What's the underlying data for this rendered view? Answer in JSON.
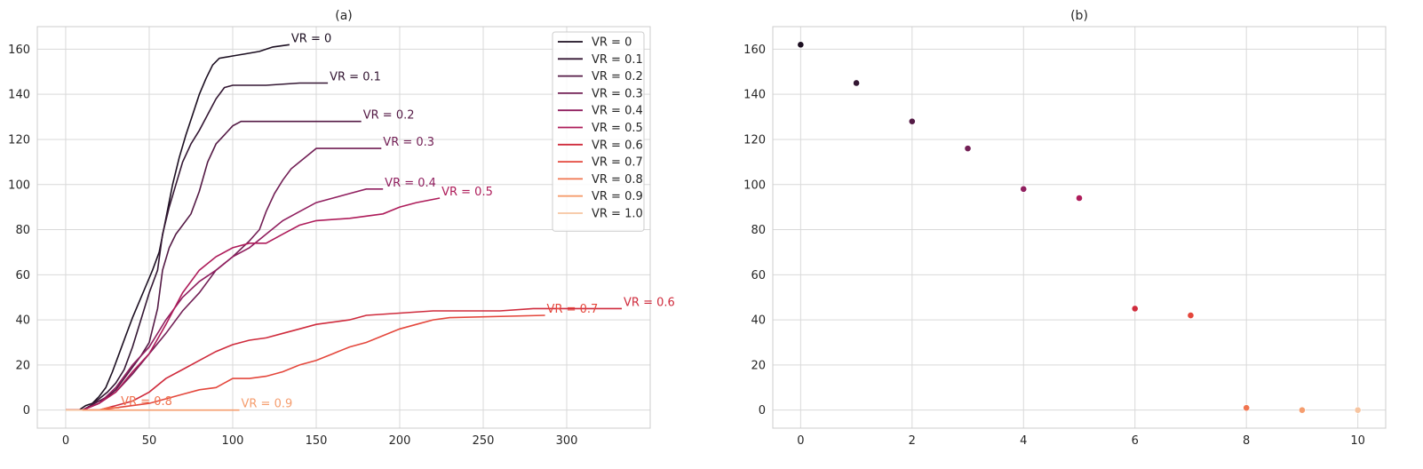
{
  "chart_data": [
    {
      "type": "line",
      "title": "(a)",
      "xlabel": "",
      "ylabel": "",
      "xlim": [
        -17,
        350
      ],
      "ylim": [
        -8,
        170
      ],
      "xticks": [
        0,
        50,
        100,
        150,
        200,
        250,
        300
      ],
      "yticks": [
        0,
        20,
        40,
        60,
        80,
        100,
        120,
        140,
        160
      ],
      "grid": true,
      "legend_position": "top-right",
      "series": [
        {
          "name": "VR = 0",
          "color": "#1c0f21",
          "label": "VR = 0",
          "points": [
            [
              0,
              0
            ],
            [
              8,
              0
            ],
            [
              12,
              2
            ],
            [
              16,
              3
            ],
            [
              20,
              6
            ],
            [
              24,
              10
            ],
            [
              28,
              17
            ],
            [
              32,
              25
            ],
            [
              36,
              33
            ],
            [
              40,
              41
            ],
            [
              44,
              48
            ],
            [
              48,
              55
            ],
            [
              52,
              62
            ],
            [
              56,
              70
            ],
            [
              60,
              85
            ],
            [
              64,
              100
            ],
            [
              68,
              112
            ],
            [
              72,
              122
            ],
            [
              76,
              131
            ],
            [
              80,
              140
            ],
            [
              84,
              147
            ],
            [
              88,
              153
            ],
            [
              92,
              156
            ],
            [
              100,
              157
            ],
            [
              108,
              158
            ],
            [
              116,
              159
            ],
            [
              124,
              161
            ],
            [
              134,
              162
            ]
          ]
        },
        {
          "name": "VR = 0.1",
          "color": "#341733",
          "label": "VR = 0.1",
          "points": [
            [
              0,
              0
            ],
            [
              10,
              0
            ],
            [
              15,
              2
            ],
            [
              20,
              5
            ],
            [
              25,
              8
            ],
            [
              30,
              12
            ],
            [
              35,
              18
            ],
            [
              40,
              28
            ],
            [
              45,
              40
            ],
            [
              50,
              52
            ],
            [
              55,
              62
            ],
            [
              58,
              78
            ],
            [
              62,
              90
            ],
            [
              66,
              100
            ],
            [
              70,
              110
            ],
            [
              75,
              118
            ],
            [
              80,
              124
            ],
            [
              85,
              131
            ],
            [
              90,
              138
            ],
            [
              95,
              143
            ],
            [
              100,
              144
            ],
            [
              120,
              144
            ],
            [
              140,
              145
            ],
            [
              157,
              145
            ]
          ]
        },
        {
          "name": "VR = 0.2",
          "color": "#541a45",
          "label": "VR = 0.2",
          "points": [
            [
              0,
              0
            ],
            [
              10,
              0
            ],
            [
              15,
              2
            ],
            [
              20,
              4
            ],
            [
              25,
              6
            ],
            [
              30,
              9
            ],
            [
              35,
              14
            ],
            [
              40,
              19
            ],
            [
              45,
              24
            ],
            [
              50,
              30
            ],
            [
              55,
              45
            ],
            [
              58,
              62
            ],
            [
              62,
              72
            ],
            [
              66,
              78
            ],
            [
              70,
              82
            ],
            [
              75,
              87
            ],
            [
              80,
              97
            ],
            [
              85,
              110
            ],
            [
              90,
              118
            ],
            [
              95,
              122
            ],
            [
              100,
              126
            ],
            [
              105,
              128
            ],
            [
              120,
              128
            ],
            [
              150,
              128
            ],
            [
              177,
              128
            ]
          ]
        },
        {
          "name": "VR = 0.3",
          "color": "#721f55",
          "label": "VR = 0.3",
          "points": [
            [
              0,
              0
            ],
            [
              10,
              0
            ],
            [
              20,
              3
            ],
            [
              30,
              8
            ],
            [
              40,
              16
            ],
            [
              50,
              25
            ],
            [
              60,
              34
            ],
            [
              70,
              44
            ],
            [
              80,
              52
            ],
            [
              90,
              62
            ],
            [
              100,
              68
            ],
            [
              110,
              75
            ],
            [
              116,
              80
            ],
            [
              120,
              88
            ],
            [
              125,
              96
            ],
            [
              130,
              102
            ],
            [
              135,
              107
            ],
            [
              140,
              110
            ],
            [
              145,
              113
            ],
            [
              150,
              116
            ],
            [
              170,
              116
            ],
            [
              189,
              116
            ]
          ]
        },
        {
          "name": "VR = 0.4",
          "color": "#901f5f",
          "label": "VR = 0.4",
          "points": [
            [
              0,
              0
            ],
            [
              10,
              0
            ],
            [
              20,
              3
            ],
            [
              30,
              10
            ],
            [
              40,
              20
            ],
            [
              50,
              28
            ],
            [
              60,
              40
            ],
            [
              70,
              50
            ],
            [
              80,
              57
            ],
            [
              90,
              62
            ],
            [
              100,
              68
            ],
            [
              110,
              72
            ],
            [
              120,
              78
            ],
            [
              130,
              84
            ],
            [
              140,
              88
            ],
            [
              150,
              92
            ],
            [
              160,
              94
            ],
            [
              170,
              96
            ],
            [
              180,
              98
            ],
            [
              190,
              98
            ]
          ]
        },
        {
          "name": "VR = 0.5",
          "color": "#ae1c5a",
          "label": "VR = 0.5",
          "points": [
            [
              0,
              0
            ],
            [
              10,
              0
            ],
            [
              20,
              3
            ],
            [
              30,
              8
            ],
            [
              40,
              17
            ],
            [
              50,
              25
            ],
            [
              60,
              38
            ],
            [
              70,
              52
            ],
            [
              80,
              62
            ],
            [
              90,
              68
            ],
            [
              100,
              72
            ],
            [
              110,
              74
            ],
            [
              120,
              74
            ],
            [
              130,
              78
            ],
            [
              140,
              82
            ],
            [
              150,
              84
            ],
            [
              170,
              85
            ],
            [
              190,
              87
            ],
            [
              200,
              90
            ],
            [
              210,
              92
            ],
            [
              224,
              94
            ]
          ]
        },
        {
          "name": "VR = 0.6",
          "color": "#cf2b3c",
          "label": "VR = 0.6",
          "points": [
            [
              0,
              0
            ],
            [
              20,
              0
            ],
            [
              30,
              2
            ],
            [
              40,
              4
            ],
            [
              50,
              8
            ],
            [
              60,
              14
            ],
            [
              70,
              18
            ],
            [
              80,
              22
            ],
            [
              90,
              26
            ],
            [
              100,
              29
            ],
            [
              110,
              31
            ],
            [
              120,
              32
            ],
            [
              130,
              34
            ],
            [
              140,
              36
            ],
            [
              150,
              38
            ],
            [
              170,
              40
            ],
            [
              180,
              42
            ],
            [
              200,
              43
            ],
            [
              220,
              44
            ],
            [
              260,
              44
            ],
            [
              280,
              45
            ],
            [
              333,
              45
            ]
          ]
        },
        {
          "name": "VR = 0.7",
          "color": "#e4473c",
          "label": "VR = 0.7",
          "points": [
            [
              0,
              0
            ],
            [
              20,
              0
            ],
            [
              30,
              1
            ],
            [
              40,
              2
            ],
            [
              50,
              3
            ],
            [
              60,
              5
            ],
            [
              70,
              7
            ],
            [
              80,
              9
            ],
            [
              90,
              10
            ],
            [
              100,
              14
            ],
            [
              110,
              14
            ],
            [
              120,
              15
            ],
            [
              130,
              17
            ],
            [
              140,
              20
            ],
            [
              150,
              22
            ],
            [
              160,
              25
            ],
            [
              170,
              28
            ],
            [
              180,
              30
            ],
            [
              190,
              33
            ],
            [
              200,
              36
            ],
            [
              210,
              38
            ],
            [
              220,
              40
            ],
            [
              230,
              41
            ],
            [
              287,
              42
            ]
          ]
        },
        {
          "name": "VR = 0.8",
          "color": "#f0744f",
          "label": "VR = 0.8",
          "points": [
            [
              0,
              0
            ],
            [
              10,
              0
            ],
            [
              20,
              0
            ],
            [
              25,
              1
            ],
            [
              32,
              1
            ]
          ]
        },
        {
          "name": "VR = 0.9",
          "color": "#f59d6e",
          "label": "VR = 0.9",
          "points": [
            [
              0,
              0
            ],
            [
              104,
              0
            ]
          ]
        },
        {
          "name": "VR = 1.0",
          "color": "#f6c4a0",
          "label": "",
          "points": [
            [
              0,
              0
            ],
            [
              10,
              0
            ]
          ]
        }
      ]
    },
    {
      "type": "scatter",
      "title": "(b)",
      "xlabel": "",
      "ylabel": "",
      "xlim": [
        -0.5,
        10.5
      ],
      "ylim": [
        -8,
        170
      ],
      "xticks": [
        0,
        2,
        4,
        6,
        8,
        10
      ],
      "yticks": [
        0,
        20,
        40,
        60,
        80,
        100,
        120,
        140,
        160
      ],
      "grid": true,
      "points": [
        {
          "x": 0,
          "y": 162,
          "color": "#1c0f21"
        },
        {
          "x": 1,
          "y": 145,
          "color": "#341733"
        },
        {
          "x": 2,
          "y": 128,
          "color": "#541a45"
        },
        {
          "x": 3,
          "y": 116,
          "color": "#721f55"
        },
        {
          "x": 4,
          "y": 98,
          "color": "#901f5f"
        },
        {
          "x": 5,
          "y": 94,
          "color": "#ae1c5a"
        },
        {
          "x": 6,
          "y": 45,
          "color": "#cf2b3c"
        },
        {
          "x": 7,
          "y": 42,
          "color": "#e4473c"
        },
        {
          "x": 8,
          "y": 1,
          "color": "#f0744f"
        },
        {
          "x": 9,
          "y": 0,
          "color": "#f59d6e"
        },
        {
          "x": 10,
          "y": 0,
          "color": "#f6c4a0"
        }
      ]
    }
  ]
}
